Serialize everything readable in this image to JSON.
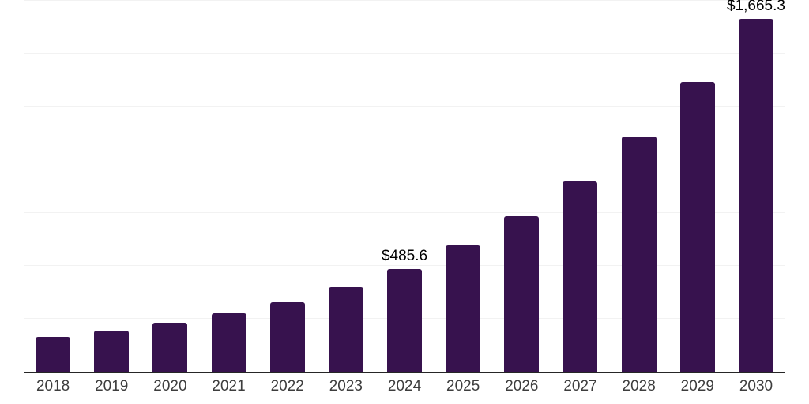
{
  "chart_data": {
    "type": "bar",
    "title": "",
    "xlabel": "",
    "ylabel": "",
    "categories": [
      "2018",
      "2019",
      "2020",
      "2021",
      "2022",
      "2023",
      "2024",
      "2025",
      "2026",
      "2027",
      "2028",
      "2029",
      "2030"
    ],
    "values": [
      164,
      193,
      231,
      276,
      329,
      400,
      485.6,
      595,
      732,
      899,
      1108,
      1366,
      1665.3
    ],
    "bar_labels": [
      "",
      "",
      "",
      "",
      "",
      "",
      "$485.6",
      "",
      "",
      "",
      "",
      "",
      "$1,665.3"
    ],
    "ylim": [
      0,
      1750
    ],
    "gridline_step": 250,
    "grid": true,
    "legend_position": "none",
    "colors": {
      "bar": "#37124E",
      "axis": "#262626",
      "gridline": "#F2F2F2",
      "tick_label": "#3D3D3D",
      "data_label": "#000000",
      "background": "#FFFFFF"
    }
  }
}
